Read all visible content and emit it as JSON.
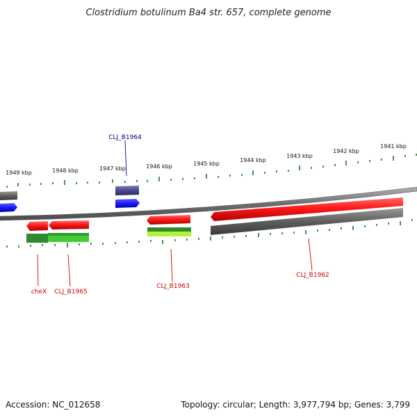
{
  "title": "Clostridium botulinum Ba4 str. 657, complete genome",
  "footer": {
    "accession": "Accession: NC_012658",
    "topology": "Topology: circular; Length: 3,977,794 bp; Genes: 3,799"
  },
  "scale_labels": [
    "1949 kbp",
    "1948 kbp",
    "1947 kbp",
    "1946 kbp",
    "1945 kbp",
    "1944 kbp",
    "1943 kbp",
    "1942 kbp",
    "1941 kbp"
  ],
  "gene_labels": [
    {
      "text": "CLJ_B1964",
      "color": "#00008b"
    },
    {
      "text": "cheX",
      "color": "#cc0000"
    },
    {
      "text": "CLJ_B1965",
      "color": "#cc0000"
    },
    {
      "text": "CLJ_B1963",
      "color": "#cc0000"
    },
    {
      "text": "CLJ_B1962",
      "color": "#cc0000"
    }
  ],
  "colors": {
    "backbone": "#7a7a7a",
    "gene_red": "#ff1a1a",
    "gene_blue": "#1a1aff",
    "gene_darkblue": "#4a4a8a",
    "gene_gray": "#666666",
    "gene_green": "#2a9a2a",
    "tick_green": "#1a7a1a"
  }
}
